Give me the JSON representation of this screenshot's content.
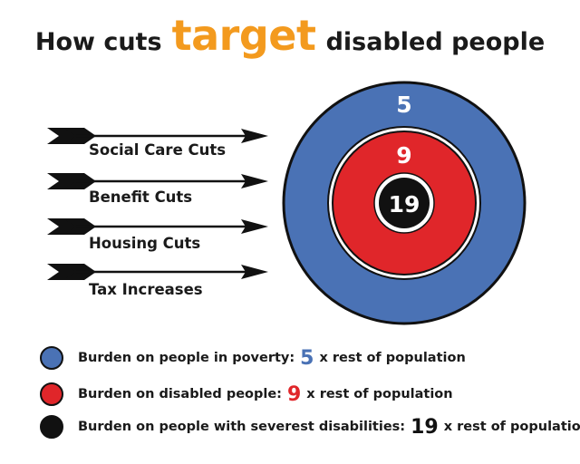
{
  "title": {
    "before": "How cuts",
    "highlight": "target",
    "after": "disabled people"
  },
  "arrows": [
    {
      "label": "Social Care Cuts"
    },
    {
      "label": "Benefit Cuts"
    },
    {
      "label": "Housing Cuts"
    },
    {
      "label": "Tax Increases"
    }
  ],
  "target": {
    "outer_value": "5",
    "middle_value": "9",
    "inner_value": "19"
  },
  "legend": [
    {
      "text": "Burden on people in poverty:",
      "value": "5",
      "suffix": "x rest of population"
    },
    {
      "text": "Burden on disabled people:",
      "value": "9",
      "suffix": "x rest of population"
    },
    {
      "text": "Burden on people with severest disabilities:",
      "value": "19",
      "suffix": "x rest of population"
    }
  ],
  "colors": {
    "accent": "#f39a1e",
    "blue": "#4a72b5",
    "red": "#e0262a",
    "black": "#111111",
    "text": "#1a1a1a"
  }
}
